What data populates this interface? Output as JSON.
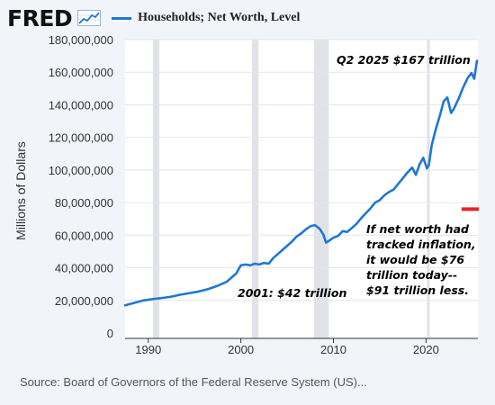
{
  "header": {
    "logo_text": "FRED",
    "logo_icon": "line-chart-icon",
    "series_name": "Households; Net Worth, Level",
    "series_color": "#1f77d4"
  },
  "source": "Source: Board of Governors of the Federal Reserve System (US)...",
  "annotations": {
    "latest": "Q2 2025 $167 trillion",
    "y2001": "2001: $42 trillion",
    "inflation_lines": [
      "If net worth had",
      "tracked inflation,",
      "it would be $76",
      "trillion today--",
      "$91 trillion less."
    ]
  },
  "chart_data": {
    "type": "line",
    "title": "",
    "xlabel": "",
    "ylabel": "Millions of Dollars",
    "xlim": [
      1987.5,
      2025.6
    ],
    "ylim": [
      0,
      180000000
    ],
    "x_ticks": [
      1990,
      2000,
      2010,
      2020
    ],
    "y_ticks": [
      0,
      20000000,
      40000000,
      60000000,
      80000000,
      100000000,
      120000000,
      140000000,
      160000000,
      180000000
    ],
    "y_tick_labels": [
      "0",
      "20,000,000",
      "40,000,000",
      "60,000,000",
      "80,000,000",
      "100,000,000",
      "120,000,000",
      "140,000,000",
      "160,000,000",
      "180,000,000"
    ],
    "grid": "horizontal",
    "recession_color": "#e1e3e8",
    "recessions": [
      [
        1990.5,
        1991.2
      ],
      [
        2001.2,
        2001.9
      ],
      [
        2007.9,
        2009.5
      ],
      [
        2020.1,
        2020.4
      ]
    ],
    "inflation_marker": {
      "x": 2025,
      "value": 76000000,
      "color": "#e8242a"
    },
    "series": [
      {
        "name": "Households; Net Worth, Level",
        "color": "#1f77d4",
        "x": [
          1987.5,
          1988.5,
          1989.5,
          1990.5,
          1991.5,
          1992.5,
          1993.5,
          1994.5,
          1995.5,
          1996.5,
          1997.5,
          1998.5,
          1999.0,
          1999.5,
          2000.0,
          2000.5,
          2001.0,
          2001.5,
          2002.0,
          2002.5,
          2003.0,
          2003.5,
          2004.0,
          2004.5,
          2005.0,
          2005.5,
          2006.0,
          2006.5,
          2007.0,
          2007.5,
          2008.0,
          2008.5,
          2008.9,
          2009.2,
          2009.5,
          2010.0,
          2010.5,
          2011.0,
          2011.5,
          2012.0,
          2012.5,
          2013.0,
          2013.5,
          2014.0,
          2014.5,
          2015.0,
          2015.5,
          2016.0,
          2016.5,
          2017.0,
          2017.5,
          2018.0,
          2018.5,
          2018.9,
          2019.3,
          2019.7,
          2020.1,
          2020.3,
          2020.6,
          2021.0,
          2021.5,
          2021.9,
          2022.3,
          2022.7,
          2023.0,
          2023.5,
          2024.0,
          2024.5,
          2024.9,
          2025.2,
          2025.5
        ],
        "values": [
          17000000,
          18500000,
          20000000,
          20800000,
          21500000,
          22300000,
          23500000,
          24500000,
          25500000,
          27000000,
          29000000,
          31500000,
          34000000,
          36500000,
          41500000,
          42000000,
          41500000,
          42500000,
          42000000,
          43000000,
          42500000,
          46000000,
          48500000,
          51000000,
          53500000,
          56000000,
          59000000,
          61000000,
          63500000,
          65500000,
          66200000,
          64000000,
          60500000,
          55500000,
          56500000,
          58500000,
          59500000,
          62500000,
          62000000,
          64500000,
          67000000,
          70500000,
          73500000,
          76500000,
          80000000,
          81500000,
          84500000,
          86500000,
          88000000,
          91500000,
          95000000,
          98500000,
          101500000,
          97000000,
          103500000,
          107500000,
          101000000,
          103000000,
          115000000,
          124000000,
          133500000,
          142000000,
          144500000,
          135000000,
          137500000,
          143500000,
          150500000,
          156500000,
          159500000,
          156000000,
          167000000
        ]
      }
    ]
  }
}
